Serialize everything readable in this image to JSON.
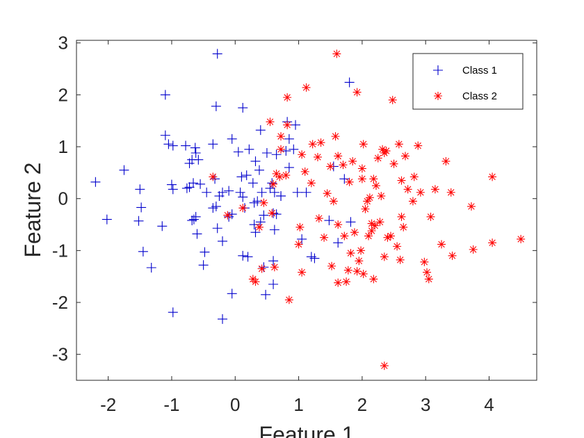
{
  "chart_data": {
    "type": "scatter",
    "xlabel": "Feature 1",
    "ylabel": "Feature 2",
    "xlim": [
      -2.5,
      4.75
    ],
    "ylim": [
      -3.5,
      3.05
    ],
    "xticks": [
      -2,
      -1,
      0,
      1,
      2,
      3,
      4
    ],
    "yticks": [
      -3,
      -2,
      -1,
      0,
      1,
      2,
      3
    ],
    "xtick_labels": [
      "-2",
      "-1",
      "0",
      "1",
      "2",
      "3",
      "4"
    ],
    "ytick_labels": [
      "-3",
      "-2",
      "-1",
      "0",
      "1",
      "2",
      "3"
    ],
    "grid": false,
    "legend_position": "top-right",
    "series": [
      {
        "name": "Class 1",
        "marker": "plus",
        "color": "#0000cc",
        "points": [
          [
            -2.2,
            0.32
          ],
          [
            -2.02,
            -0.4
          ],
          [
            -1.75,
            0.55
          ],
          [
            -1.5,
            0.18
          ],
          [
            -1.48,
            -0.17
          ],
          [
            -1.52,
            -0.43
          ],
          [
            -1.45,
            -1.02
          ],
          [
            -1.32,
            -1.33
          ],
          [
            -1.1,
            2.0
          ],
          [
            -1.1,
            1.22
          ],
          [
            -1.05,
            1.05
          ],
          [
            -0.98,
            1.02
          ],
          [
            -1.15,
            -0.53
          ],
          [
            -1.0,
            0.27
          ],
          [
            -0.98,
            0.18
          ],
          [
            -0.98,
            -2.19
          ],
          [
            -0.78,
            1.02
          ],
          [
            -0.72,
            0.68
          ],
          [
            -0.68,
            0.75
          ],
          [
            -0.63,
            0.98
          ],
          [
            -0.62,
            0.88
          ],
          [
            -0.58,
            0.75
          ],
          [
            -0.72,
            0.22
          ],
          [
            -0.76,
            0.2
          ],
          [
            -0.66,
            0.3
          ],
          [
            -0.65,
            -0.4
          ],
          [
            -0.62,
            -0.35
          ],
          [
            -0.68,
            -0.42
          ],
          [
            -0.6,
            -0.68
          ],
          [
            -0.55,
            0.28
          ],
          [
            -0.45,
            0.12
          ],
          [
            -0.48,
            -1.03
          ],
          [
            -0.5,
            -1.28
          ],
          [
            -0.35,
            1.05
          ],
          [
            -0.32,
            0.38
          ],
          [
            -0.3,
            1.78
          ],
          [
            -0.28,
            2.79
          ],
          [
            -0.35,
            -0.18
          ],
          [
            -0.3,
            -0.15
          ],
          [
            -0.28,
            -0.57
          ],
          [
            -0.2,
            -0.82
          ],
          [
            -0.2,
            -2.32
          ],
          [
            -0.25,
            0.05
          ],
          [
            -0.2,
            0.12
          ],
          [
            -0.1,
            0.15
          ],
          [
            -0.1,
            -0.35
          ],
          [
            -0.05,
            -0.3
          ],
          [
            -0.05,
            -1.83
          ],
          [
            -0.05,
            1.15
          ],
          [
            0.05,
            0.9
          ],
          [
            0.1,
            0.42
          ],
          [
            0.12,
            1.75
          ],
          [
            0.08,
            0.12
          ],
          [
            0.12,
            0.03
          ],
          [
            0.15,
            -0.18
          ],
          [
            0.12,
            -1.1
          ],
          [
            0.2,
            -1.12
          ],
          [
            0.18,
            0.45
          ],
          [
            0.22,
            0.95
          ],
          [
            0.28,
            0.3
          ],
          [
            0.3,
            -0.08
          ],
          [
            0.35,
            -0.05
          ],
          [
            0.3,
            -0.5
          ],
          [
            0.32,
            -0.65
          ],
          [
            0.32,
            0.72
          ],
          [
            0.38,
            0.55
          ],
          [
            0.4,
            1.32
          ],
          [
            0.42,
            0.12
          ],
          [
            0.4,
            -0.45
          ],
          [
            0.45,
            -0.32
          ],
          [
            0.45,
            -1.32
          ],
          [
            0.48,
            -1.85
          ],
          [
            0.5,
            0.88
          ],
          [
            0.55,
            0.2
          ],
          [
            0.58,
            0.3
          ],
          [
            0.62,
            0.12
          ],
          [
            0.6,
            -0.28
          ],
          [
            0.65,
            -0.3
          ],
          [
            0.62,
            -0.6
          ],
          [
            0.6,
            -1.2
          ],
          [
            0.6,
            -1.65
          ],
          [
            0.65,
            0.85
          ],
          [
            0.72,
            0.05
          ],
          [
            0.72,
            0.05
          ],
          [
            0.8,
            0.92
          ],
          [
            0.82,
            1.48
          ],
          [
            0.85,
            1.15
          ],
          [
            0.85,
            0.6
          ],
          [
            0.92,
            0.95
          ],
          [
            0.95,
            1.42
          ],
          [
            0.98,
            0.12
          ],
          [
            1.05,
            -0.78
          ],
          [
            1.12,
            0.12
          ],
          [
            1.2,
            -1.12
          ],
          [
            1.25,
            -1.15
          ],
          [
            1.48,
            -0.42
          ],
          [
            1.55,
            0.62
          ],
          [
            1.62,
            -0.85
          ],
          [
            1.72,
            0.38
          ],
          [
            1.8,
            2.24
          ],
          [
            1.82,
            -0.45
          ]
        ]
      },
      {
        "name": "Class 2",
        "marker": "star",
        "color": "#ff0000",
        "points": [
          [
            -0.35,
            0.42
          ],
          [
            -0.12,
            -0.32
          ],
          [
            0.12,
            -0.18
          ],
          [
            0.28,
            -1.55
          ],
          [
            0.32,
            -1.6
          ],
          [
            0.38,
            -0.55
          ],
          [
            0.42,
            -1.35
          ],
          [
            0.45,
            -0.08
          ],
          [
            0.55,
            1.48
          ],
          [
            0.58,
            -0.28
          ],
          [
            0.6,
            0.28
          ],
          [
            0.62,
            -1.32
          ],
          [
            0.65,
            0.48
          ],
          [
            0.7,
            0.42
          ],
          [
            0.72,
            0.95
          ],
          [
            0.72,
            1.2
          ],
          [
            0.8,
            0.45
          ],
          [
            0.82,
            1.42
          ],
          [
            0.82,
            1.95
          ],
          [
            0.85,
            -1.95
          ],
          [
            1.0,
            -0.88
          ],
          [
            1.02,
            -0.55
          ],
          [
            1.05,
            -1.42
          ],
          [
            1.05,
            0.85
          ],
          [
            1.1,
            0.52
          ],
          [
            1.12,
            2.14
          ],
          [
            1.2,
            0.3
          ],
          [
            1.22,
            1.05
          ],
          [
            1.3,
            0.8
          ],
          [
            1.32,
            -0.38
          ],
          [
            1.35,
            1.08
          ],
          [
            1.4,
            -0.75
          ],
          [
            1.45,
            0.1
          ],
          [
            1.5,
            0.62
          ],
          [
            1.52,
            -1.3
          ],
          [
            1.58,
            1.2
          ],
          [
            1.6,
            2.79
          ],
          [
            1.62,
            0.82
          ],
          [
            1.62,
            -0.5
          ],
          [
            1.62,
            -1.62
          ],
          [
            1.7,
            0.65
          ],
          [
            1.72,
            -0.72
          ],
          [
            1.75,
            -1.6
          ],
          [
            1.78,
            -1.38
          ],
          [
            1.8,
            0.32
          ],
          [
            1.82,
            -1.05
          ],
          [
            1.85,
            0.72
          ],
          [
            1.88,
            -0.65
          ],
          [
            1.92,
            2.05
          ],
          [
            1.95,
            -1.2
          ],
          [
            1.98,
            -1.0
          ],
          [
            2.0,
            0.38
          ],
          [
            2.02,
            1.05
          ],
          [
            2.0,
            0.58
          ],
          [
            2.05,
            -0.2
          ],
          [
            2.08,
            -0.05
          ],
          [
            2.1,
            -0.72
          ],
          [
            2.12,
            0.02
          ],
          [
            2.15,
            -0.48
          ],
          [
            2.18,
            0.38
          ],
          [
            2.2,
            -0.52
          ],
          [
            2.15,
            -0.62
          ],
          [
            2.18,
            -1.55
          ],
          [
            2.22,
            0.25
          ],
          [
            2.25,
            0.78
          ],
          [
            2.28,
            -0.45
          ],
          [
            2.3,
            0.05
          ],
          [
            2.32,
            0.95
          ],
          [
            2.35,
            0.88
          ],
          [
            2.38,
            0.92
          ],
          [
            2.35,
            -1.12
          ],
          [
            2.4,
            -0.75
          ],
          [
            2.45,
            -0.72
          ],
          [
            2.48,
            1.9
          ],
          [
            2.5,
            0.67
          ],
          [
            2.55,
            -0.92
          ],
          [
            2.58,
            1.05
          ],
          [
            2.6,
            -1.18
          ],
          [
            2.62,
            0.35
          ],
          [
            2.62,
            -0.35
          ],
          [
            2.65,
            -0.55
          ],
          [
            2.68,
            0.82
          ],
          [
            2.72,
            0.18
          ],
          [
            2.8,
            -0.05
          ],
          [
            2.82,
            0.42
          ],
          [
            2.88,
            1.02
          ],
          [
            2.92,
            0.12
          ],
          [
            2.98,
            -1.22
          ],
          [
            3.02,
            -1.42
          ],
          [
            3.05,
            -1.55
          ],
          [
            3.08,
            -0.35
          ],
          [
            3.15,
            0.18
          ],
          [
            3.25,
            -0.88
          ],
          [
            3.32,
            0.72
          ],
          [
            3.4,
            0.12
          ],
          [
            3.42,
            -1.1
          ],
          [
            3.72,
            -0.15
          ],
          [
            3.75,
            -0.98
          ],
          [
            4.05,
            0.42
          ],
          [
            4.05,
            -0.85
          ],
          [
            4.5,
            -0.78
          ],
          [
            2.35,
            -3.22
          ],
          [
            1.92,
            -1.4
          ],
          [
            2.02,
            -1.45
          ],
          [
            1.55,
            -0.05
          ]
        ]
      }
    ]
  }
}
